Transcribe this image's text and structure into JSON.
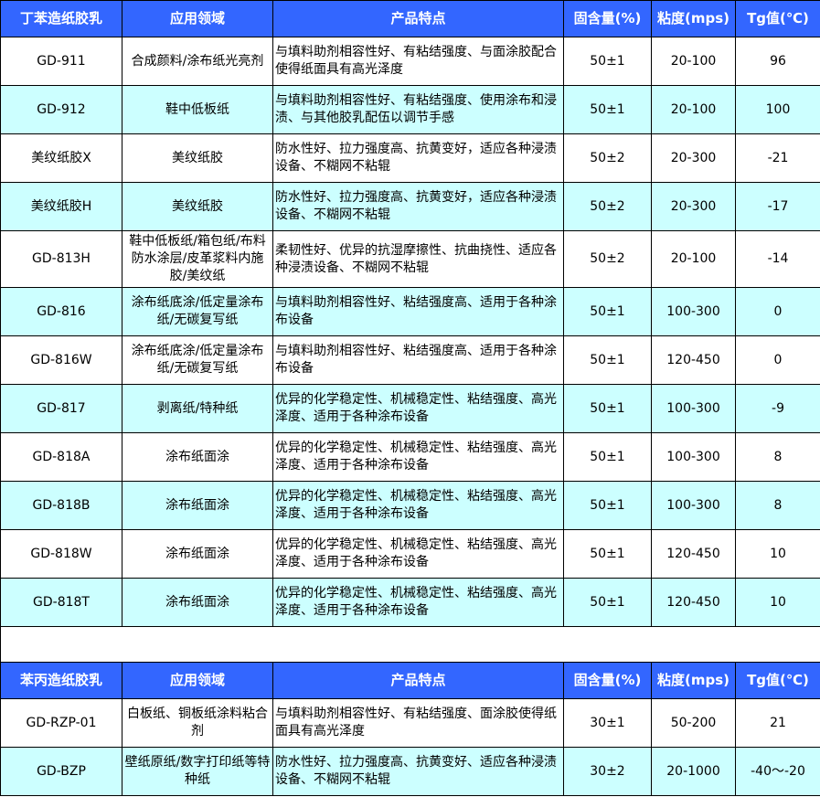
{
  "colors": {
    "header_bg": "#3366ff",
    "row_alt_bg": "#ccffff",
    "row_bg": "#ffffff"
  },
  "sections": [
    {
      "headers": [
        "丁苯造纸胶乳",
        "应用领域",
        "产品特点",
        "固含量(%)",
        "粘度(mps)",
        "Tg值(℃)"
      ],
      "rows": [
        [
          "GD-911",
          "合成颜料/涂布纸光亮剂",
          "与填料助剂相容性好、有粘结强度、与面涂胶配合使得纸面具有高光泽度",
          "50±1",
          "20-100",
          "96"
        ],
        [
          "GD-912",
          "鞋中低板纸",
          "与填料助剂相容性好、有粘结强度、使用涂布和浸渍、与其他胶乳配伍以调节手感",
          "50±1",
          "20-100",
          "100"
        ],
        [
          "美纹纸胶X",
          "美纹纸胶",
          "防水性好、拉力强度高、抗黄变好，适应各种浸渍设备、不糊网不粘辊",
          "50±2",
          "20-300",
          "-21"
        ],
        [
          "美纹纸胶H",
          "美纹纸胶",
          "防水性好、拉力强度高、抗黄变好，适应各种浸渍设备、不糊网不粘辊",
          "50±2",
          "20-300",
          "-17"
        ],
        [
          "GD-813H",
          "鞋中低板纸/箱包纸/布料防水涂层/皮革浆料内施胶/美纹纸",
          "柔韧性好、优异的抗湿摩擦性、抗曲挠性、适应各种浸渍设备、不糊网不粘辊",
          "50±2",
          "20-100",
          "-14"
        ],
        [
          "GD-816",
          "涂布纸底涂/低定量涂布纸/无碳复写纸",
          "与填料助剂相容性好、粘结强度高、适用于各种涂布设备",
          "50±1",
          "100-300",
          "0"
        ],
        [
          "GD-816W",
          "涂布纸底涂/低定量涂布纸/无碳复写纸",
          "与填料助剂相容性好、粘结强度高、适用于各种涂布设备",
          "50±1",
          "120-450",
          "0"
        ],
        [
          "GD-817",
          "剥离纸/特种纸",
          "优异的化学稳定性、机械稳定性、粘结强度、高光泽度、适用于各种涂布设备",
          "50±1",
          "100-300",
          "-9"
        ],
        [
          "GD-818A",
          "涂布纸面涂",
          "优异的化学稳定性、机械稳定性、粘结强度、高光泽度、适用于各种涂布设备",
          "50±1",
          "100-300",
          "8"
        ],
        [
          "GD-818B",
          "涂布纸面涂",
          "优异的化学稳定性、机械稳定性、粘结强度、高光泽度、适用于各种涂布设备",
          "50±1",
          "100-300",
          "8"
        ],
        [
          "GD-818W",
          "涂布纸面涂",
          "优异的化学稳定性、机械稳定性、粘结强度、高光泽度、适用于各种涂布设备",
          "50±1",
          "120-450",
          "10"
        ],
        [
          "GD-818T",
          "涂布纸面涂",
          "优异的化学稳定性、机械稳定性、粘结强度、高光泽度、适用于各种涂布设备",
          "50±1",
          "120-450",
          "10"
        ]
      ]
    },
    {
      "headers": [
        "苯丙造纸胶乳",
        "应用领域",
        "产品特点",
        "固含量(%)",
        "粘度(mps)",
        "Tg值(℃)"
      ],
      "rows": [
        [
          "GD-RZP-01",
          "白板纸、铜板纸涂料粘合剂",
          "与填料助剂相容性好、有粘结强度、面涂胶使得纸面具有高光泽度",
          "30±1",
          "50-200",
          "21"
        ],
        [
          "GD-BZP",
          "壁纸原纸/数字打印纸等特种纸",
          "防水性好、拉力强度高、抗黄变好、适应各种浸渍设备、不糊网不粘辊",
          "30±2",
          "20-1000",
          "-40～-20"
        ]
      ]
    }
  ]
}
